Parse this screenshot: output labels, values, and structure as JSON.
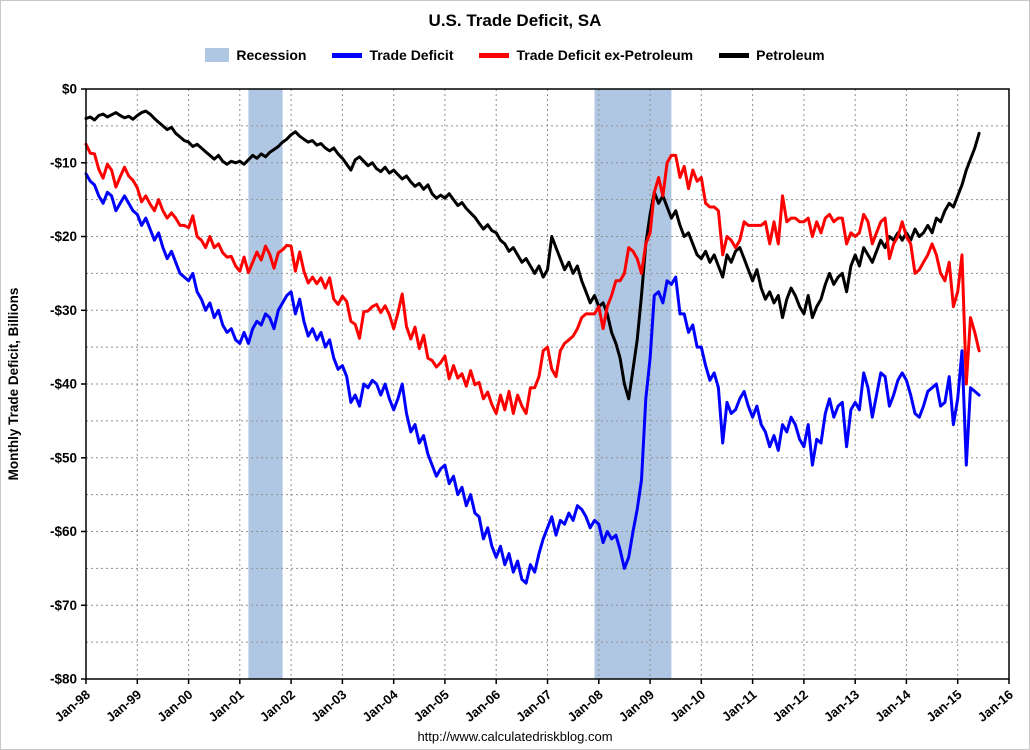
{
  "page": {
    "title": "U.S. Trade Deficit, SA",
    "footer_url": "http://www.calculatedriskblog.com"
  },
  "legend": {
    "items": [
      {
        "label": "Recession",
        "swatch": "box",
        "color": "#b0c7e4"
      },
      {
        "label": "Trade Deficit",
        "swatch": "line",
        "color": "#0000ff"
      },
      {
        "label": "Trade Deficit ex-Petroleum",
        "swatch": "line",
        "color": "#ff0000"
      },
      {
        "label": "Petroleum",
        "swatch": "line",
        "color": "#000000"
      }
    ]
  },
  "chart_data": {
    "type": "line",
    "title": "U.S. Trade Deficit, SA",
    "xlabel": "",
    "ylabel": "Monthly Trade Deficit, Billions",
    "ylim": [
      -80,
      0
    ],
    "y_tick_labels": [
      "$0",
      "-$10",
      "-$20",
      "-$30",
      "-$40",
      "-$50",
      "-$60",
      "-$70",
      "-$80"
    ],
    "y_minor_step": 5,
    "x_ticks": [
      "Jan-98",
      "Jan-99",
      "Jan-00",
      "Jan-01",
      "Jan-02",
      "Jan-03",
      "Jan-04",
      "Jan-05",
      "Jan-06",
      "Jan-07",
      "Jan-08",
      "Jan-09",
      "Jan-10",
      "Jan-11",
      "Jan-12",
      "Jan-13",
      "Jan-14",
      "Jan-15",
      "Jan-16"
    ],
    "x_range_months": 216,
    "x_unit": "monthly, starting Jan-98",
    "grid": true,
    "legend_position": "top",
    "recession_color": "#b0c7e4",
    "recession_bands": [
      {
        "label": "2001 recession",
        "start_month": 38,
        "end_month": 46
      },
      {
        "label": "2007-2009 recession",
        "start_month": 119,
        "end_month": 137
      }
    ],
    "series": [
      {
        "name": "Trade Deficit",
        "color": "#0000ff",
        "values": [
          -11.5,
          -12.5,
          -13,
          -14.5,
          -15.5,
          -14,
          -14.5,
          -16.5,
          -15.5,
          -14.5,
          -15.5,
          -16.5,
          -17,
          -18.5,
          -17.5,
          -19,
          -20.5,
          -19.5,
          -21.5,
          -23,
          -22,
          -23.5,
          -25,
          -25.5,
          -26,
          -25,
          -27.5,
          -28.5,
          -30,
          -29,
          -31,
          -30,
          -32,
          -33,
          -32.5,
          -34,
          -34.5,
          -33,
          -34.5,
          -32.5,
          -31.5,
          -32,
          -30.5,
          -31,
          -32.5,
          -30,
          -29,
          -28,
          -27.5,
          -30.5,
          -28.5,
          -31.5,
          -33.5,
          -32.5,
          -34,
          -33,
          -35,
          -34,
          -36.5,
          -38,
          -37.5,
          -39,
          -42.5,
          -41.5,
          -43,
          -40,
          -40.5,
          -39.5,
          -40,
          -41.5,
          -40,
          -42,
          -43.5,
          -42,
          -40,
          -44,
          -46.5,
          -45.5,
          -48,
          -47,
          -49.5,
          -51,
          -52.5,
          -51.5,
          -51,
          -53.5,
          -52.5,
          -55,
          -54,
          -56.5,
          -55,
          -57.5,
          -58,
          -61,
          -59.5,
          -62,
          -63.5,
          -62,
          -64.5,
          -63,
          -65.5,
          -64,
          -66.5,
          -67,
          -64.5,
          -65.5,
          -63,
          -61,
          -59.5,
          -58,
          -60.5,
          -58.5,
          -59,
          -57.5,
          -58.5,
          -56.5,
          -57,
          -58,
          -59.5,
          -58.5,
          -59,
          -61.5,
          -60,
          -61,
          -60.5,
          -62.5,
          -65,
          -63.5,
          -60,
          -57,
          -53,
          -42,
          -36.5,
          -28,
          -27.5,
          -29,
          -26,
          -26.5,
          -25.5,
          -30.5,
          -30.5,
          -33,
          -32,
          -35,
          -35,
          -37.5,
          -39.5,
          -38.5,
          -40.5,
          -48,
          -42.5,
          -44,
          -43.5,
          -42,
          -41,
          -43,
          -44.5,
          -43,
          -45.5,
          -46.5,
          -48.5,
          -47,
          -49,
          -45.5,
          -46.5,
          -44.5,
          -45.5,
          -47.5,
          -48.5,
          -45.5,
          -51,
          -47.5,
          -48,
          -44,
          -42,
          -44.5,
          -43,
          -42.5,
          -48.5,
          -43.5,
          -42.5,
          -43.5,
          -38.5,
          -40.5,
          -44.5,
          -41.5,
          -38.5,
          -39,
          -43,
          -41.5,
          -39.5,
          -38.5,
          -39.5,
          -41.5,
          -44,
          -44.5,
          -43,
          -41,
          -40.5,
          -40,
          -43,
          -42.5,
          -39,
          -45.5,
          -42,
          -35.5,
          -51,
          -40.5,
          -41,
          -41.5
        ]
      },
      {
        "name": "Trade Deficit ex-Petroleum",
        "color": "#ff0000",
        "values": [
          -7.5,
          -8.7,
          -8.8,
          -10.9,
          -12.1,
          -10.2,
          -11,
          -13.3,
          -11.9,
          -10.6,
          -11.8,
          -12.4,
          -13.4,
          -15.3,
          -14.5,
          -15.6,
          -16.5,
          -15,
          -16.5,
          -17.5,
          -16.8,
          -17.5,
          -18.5,
          -18.5,
          -18.8,
          -17.2,
          -20,
          -20.5,
          -21.5,
          -20,
          -21.5,
          -21,
          -22.2,
          -22.8,
          -22.7,
          -24,
          -24.7,
          -22.8,
          -24.9,
          -23.5,
          -22.1,
          -23.2,
          -21.3,
          -22.4,
          -24.3,
          -22.2,
          -21.8,
          -21.2,
          -21.3,
          -24.7,
          -22.1,
          -24.7,
          -26.3,
          -25.5,
          -26.4,
          -25.6,
          -27,
          -25.6,
          -28.5,
          -29.2,
          -28.1,
          -28.8,
          -31.5,
          -31.9,
          -33.8,
          -30.2,
          -30.1,
          -29.5,
          -29.2,
          -30.3,
          -29.4,
          -30.6,
          -32.5,
          -30.4,
          -27.8,
          -32.2,
          -33.9,
          -32.3,
          -35.2,
          -33.4,
          -36.5,
          -36.8,
          -37.7,
          -37.1,
          -36.2,
          -39.3,
          -37.5,
          -39.2,
          -38.6,
          -40.3,
          -38.2,
          -40.1,
          -39.8,
          -42,
          -41.1,
          -42.8,
          -44,
          -41.5,
          -43.5,
          -41,
          -44,
          -41.5,
          -43,
          -44,
          -40.5,
          -40.5,
          -39,
          -35.5,
          -35,
          -38,
          -39,
          -35.5,
          -34.5,
          -34,
          -33.5,
          -32.5,
          -31,
          -30.5,
          -30.5,
          -30.5,
          -29.5,
          -32.5,
          -29.5,
          -28,
          -26,
          -26,
          -25,
          -21.5,
          -22,
          -23,
          -25,
          -21,
          -19.5,
          -14,
          -12,
          -14.5,
          -10,
          -9,
          -9,
          -12,
          -10.5,
          -13.5,
          -11,
          -12.5,
          -12,
          -15.5,
          -16,
          -16,
          -16.5,
          -22.5,
          -20,
          -20.5,
          -21.5,
          -20.5,
          -18,
          -18.5,
          -18.5,
          -18.5,
          -18.5,
          -18,
          -21,
          -18,
          -21,
          -14.5,
          -18,
          -17.5,
          -17.5,
          -18,
          -18,
          -17.5,
          -20,
          -18,
          -19.5,
          -17.5,
          -17,
          -18,
          -17.5,
          -17.5,
          -21,
          -19.5,
          -20,
          -19.5,
          -17,
          -18,
          -21,
          -19.5,
          -18,
          -17.5,
          -23,
          -21,
          -20,
          -18,
          -20,
          -21,
          -25,
          -24.5,
          -23.5,
          -22.5,
          -21,
          -22.5,
          -25,
          -26,
          -23.5,
          -29.5,
          -27.5,
          -22.5,
          -40,
          -31,
          -33,
          -35.5
        ]
      },
      {
        "name": "Petroleum",
        "color": "#000000",
        "values": [
          -4,
          -3.8,
          -4.2,
          -3.6,
          -3.4,
          -3.8,
          -3.5,
          -3.2,
          -3.6,
          -3.9,
          -3.7,
          -4.1,
          -3.6,
          -3.2,
          -3,
          -3.4,
          -4,
          -4.5,
          -5,
          -5.5,
          -5.2,
          -6,
          -6.5,
          -7,
          -7.2,
          -7.8,
          -7.5,
          -8,
          -8.5,
          -9,
          -9.5,
          -9,
          -9.8,
          -10.2,
          -9.8,
          -10,
          -9.8,
          -10.2,
          -9.6,
          -9,
          -9.4,
          -8.8,
          -9.2,
          -8.6,
          -8.2,
          -7.8,
          -7.2,
          -6.8,
          -6.2,
          -5.8,
          -6.4,
          -6.8,
          -7.2,
          -7,
          -7.6,
          -7.4,
          -8,
          -8.4,
          -8,
          -8.8,
          -9.4,
          -10.2,
          -11,
          -9.6,
          -9.2,
          -9.8,
          -10.4,
          -10,
          -10.8,
          -11.2,
          -10.6,
          -11.4,
          -11,
          -11.6,
          -12.2,
          -11.8,
          -12.6,
          -13.2,
          -12.8,
          -13.6,
          -13,
          -14.2,
          -14.8,
          -14.4,
          -14.8,
          -14.2,
          -15,
          -15.8,
          -15.4,
          -16.2,
          -16.8,
          -17.4,
          -18.2,
          -19,
          -18.4,
          -19.2,
          -19.5,
          -20.5,
          -21,
          -22,
          -21.5,
          -22.5,
          -23.5,
          -23,
          -24,
          -25,
          -24,
          -25.5,
          -24.5,
          -20,
          -21.5,
          -23,
          -24.5,
          -23.5,
          -25,
          -24,
          -26,
          -27.5,
          -29,
          -28,
          -29.5,
          -29,
          -30.5,
          -33,
          -34.5,
          -36.5,
          -40,
          -42,
          -38,
          -34,
          -28,
          -21,
          -17,
          -14,
          -15.5,
          -14.5,
          -16,
          -17.5,
          -16.5,
          -18.5,
          -20,
          -19.5,
          -21,
          -22.5,
          -23,
          -22,
          -23.5,
          -22.5,
          -24,
          -25.5,
          -22.5,
          -23.5,
          -22,
          -21.5,
          -23,
          -24.5,
          -26,
          -24.5,
          -27,
          -28.5,
          -27.5,
          -29,
          -28,
          -31,
          -28.5,
          -27,
          -28,
          -29.5,
          -30.5,
          -28,
          -31,
          -29.5,
          -28.5,
          -26.5,
          -25,
          -26.5,
          -25.5,
          -25,
          -27.5,
          -24,
          -22.5,
          -24,
          -21.5,
          -22.5,
          -23.5,
          -22,
          -20.5,
          -21.5,
          -20,
          -20.5,
          -19.5,
          -20.5,
          -19.5,
          -20.5,
          -19,
          -20,
          -19.5,
          -18.5,
          -19.5,
          -17.5,
          -18,
          -16.5,
          -15.5,
          -16,
          -14.5,
          -13,
          -11,
          -9.5,
          -8,
          -6
        ]
      }
    ]
  }
}
